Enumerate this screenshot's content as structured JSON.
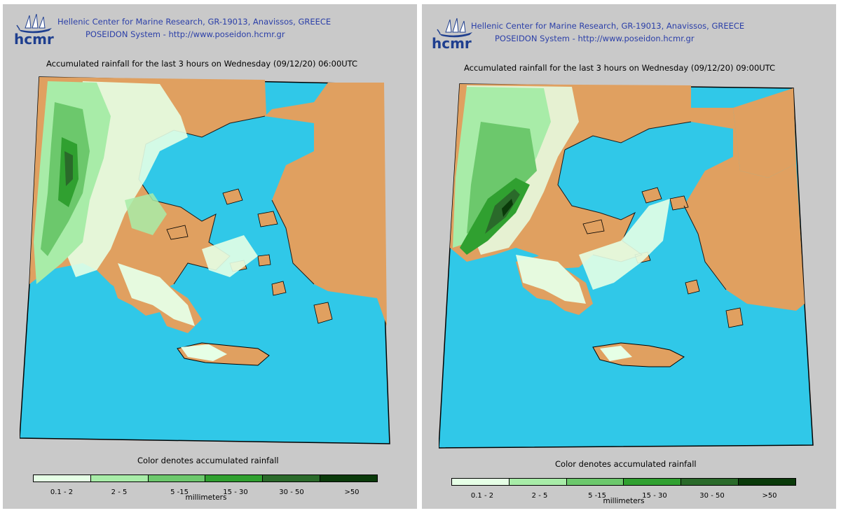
{
  "header": {
    "org_line": "Hellenic Center for Marine Research, GR-19013, Anavissos, GREECE",
    "system_line": "POSEIDON System - http://www.poseidon.hcmr.gr",
    "logo_text": "hcmr"
  },
  "colors": {
    "sea": "#30c8e8",
    "land": "#e0a060",
    "coast": "#1a1a1a",
    "rain_0_1_2": "#e6ffe6",
    "rain_2_5": "#a8eca8",
    "rain_5_15": "#6cc86c",
    "rain_15_30": "#30a030",
    "rain_30_50": "#2a6a2a",
    "rain_gt_50": "#0a3a0a"
  },
  "legend": {
    "caption": "Color denotes accumulated rainfall",
    "units": "millimeters",
    "classes": [
      {
        "label": "0.1 - 2",
        "color": "#e6ffe6"
      },
      {
        "label": "2 - 5",
        "color": "#a8eca8"
      },
      {
        "label": "5 -15",
        "color": "#6cc86c"
      },
      {
        "label": "15 - 30",
        "color": "#30a030"
      },
      {
        "label": "30 - 50",
        "color": "#2a6a2a"
      },
      {
        "label": ">50",
        "color": "#0a3a0a"
      }
    ]
  },
  "panels": [
    {
      "title": "Accumulated rainfall for the last 3 hours on Wednesday (09/12/20) 06:00UTC"
    },
    {
      "title": "Accumulated rainfall for the last 3 hours on Wednesday (09/12/20) 09:00UTC"
    }
  ]
}
